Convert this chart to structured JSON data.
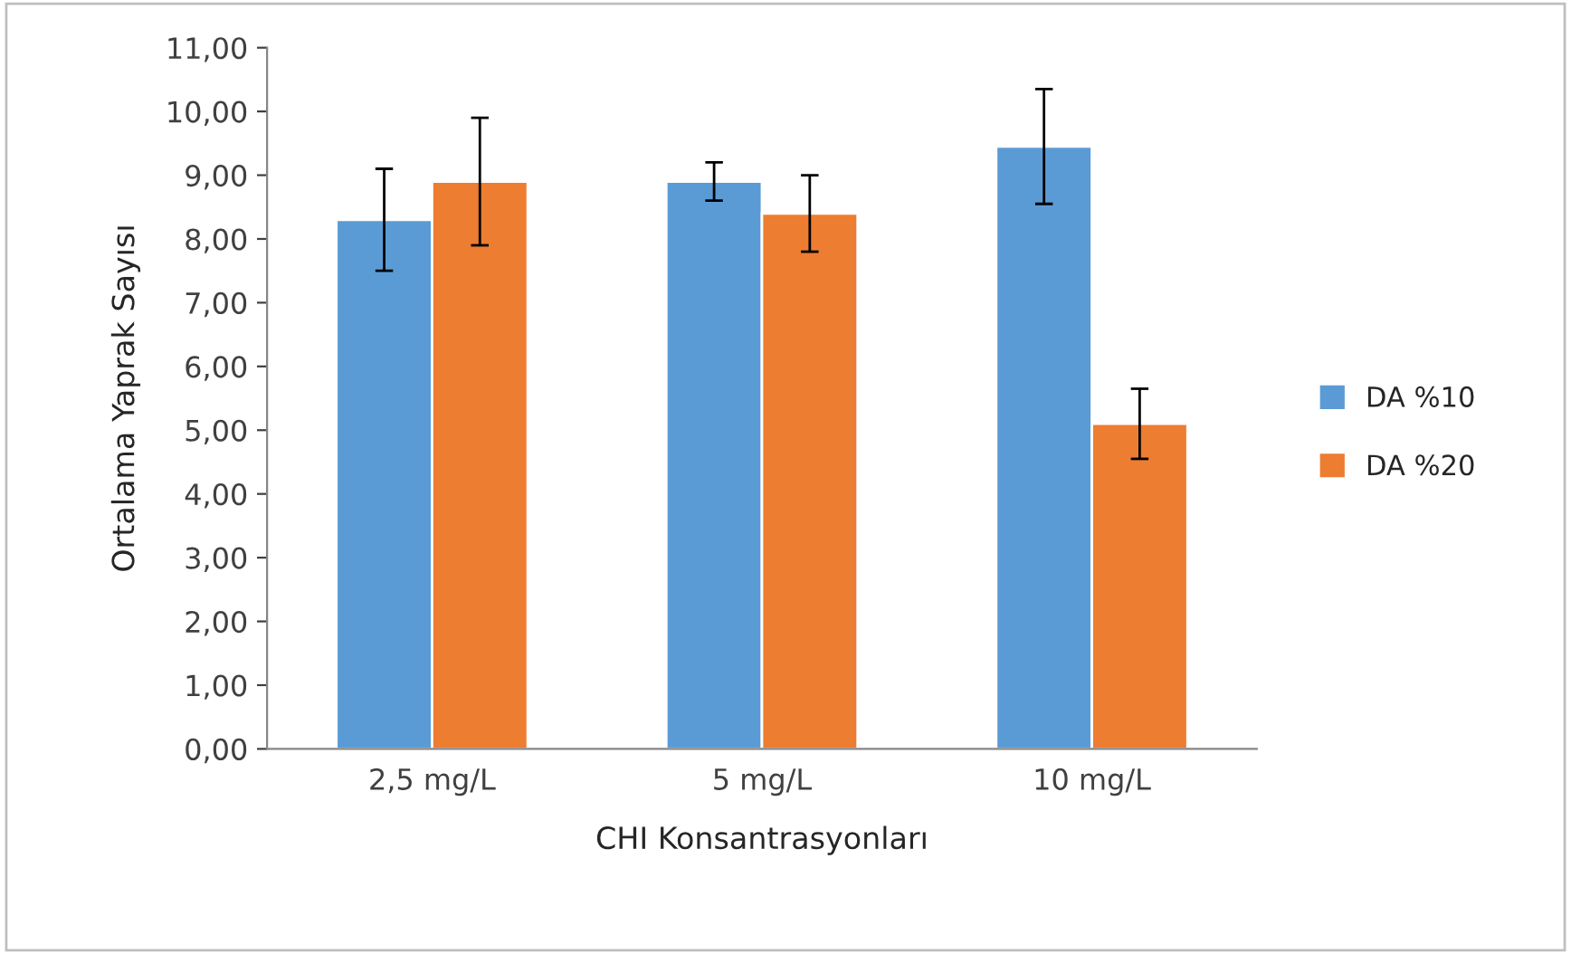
{
  "chart_data": {
    "type": "bar",
    "xlabel": "CHI Konsantrasyonları",
    "ylabel": "Ortalama Yaprak Sayısı",
    "categories": [
      "2,5 mg/L",
      "5 mg/L",
      "10 mg/L"
    ],
    "series": [
      {
        "name": "DA %10",
        "color": "#5b9bd5",
        "values": [
          8.3,
          8.9,
          9.45
        ],
        "errors": [
          0.8,
          0.3,
          0.9
        ]
      },
      {
        "name": "DA %20",
        "color": "#ed7d31",
        "values": [
          8.9,
          8.4,
          5.1
        ],
        "errors": [
          1.0,
          0.6,
          0.55
        ]
      }
    ],
    "ylim": [
      0,
      11
    ],
    "yticks": [
      {
        "value": 0,
        "label": "0,00"
      },
      {
        "value": 1,
        "label": "1,00"
      },
      {
        "value": 2,
        "label": "2,00"
      },
      {
        "value": 3,
        "label": "3,00"
      },
      {
        "value": 4,
        "label": "4,00"
      },
      {
        "value": 5,
        "label": "5,00"
      },
      {
        "value": 6,
        "label": "6,00"
      },
      {
        "value": 7,
        "label": "7,00"
      },
      {
        "value": 8,
        "label": "8,00"
      },
      {
        "value": 9,
        "label": "9,00"
      },
      {
        "value": 10,
        "label": "10,00"
      },
      {
        "value": 11,
        "label": "11,00"
      }
    ],
    "grid": false,
    "legend": "right"
  }
}
